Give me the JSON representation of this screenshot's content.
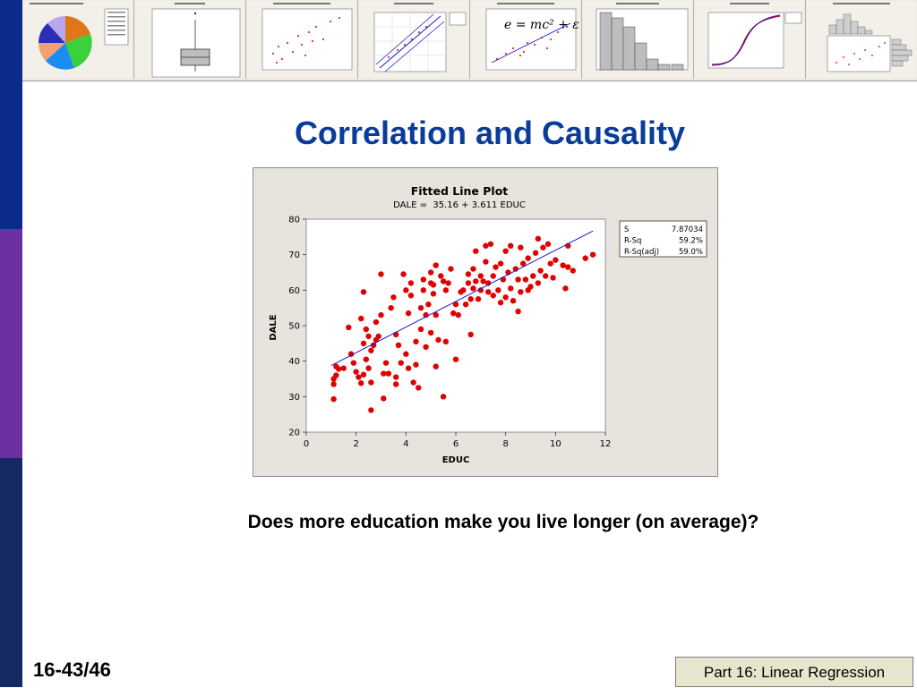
{
  "slide": {
    "title": "Correlation and Causality",
    "question": "Does more education make you live longer (on average)?",
    "slide_number": "16-43/46",
    "footer": "Part 16: Linear Regression"
  },
  "colors": {
    "sidebar": [
      "#0a2a8c",
      "#6c2fa0",
      "#152a62"
    ],
    "title": "#0a3c99",
    "points": "#e00000",
    "fit_line": "#1a1acf",
    "panel_bg": "#e7e3dd",
    "footer_bg": "#e6e6cf"
  },
  "thumbnails": [
    {
      "kind": "pie",
      "icon": "pie-chart-thumbnail"
    },
    {
      "kind": "box",
      "icon": "boxplot-thumbnail"
    },
    {
      "kind": "scatter",
      "icon": "scatterplot-thumbnail"
    },
    {
      "kind": "probability",
      "icon": "probability-plot-thumbnail"
    },
    {
      "kind": "formula",
      "icon": "scatter-formula-thumbnail"
    },
    {
      "kind": "histogram",
      "icon": "histogram-thumbnail"
    },
    {
      "kind": "cdf",
      "icon": "cdf-thumbnail"
    },
    {
      "kind": "marginal",
      "icon": "marginal-plot-thumbnail"
    }
  ],
  "chart_data": {
    "type": "scatter",
    "title": "Fitted Line Plot",
    "subtitle": "DALE =  35.16 + 3.611 EDUC",
    "xlabel": "EDUC",
    "ylabel": "DALE",
    "xlim": [
      0,
      12
    ],
    "ylim": [
      20,
      80
    ],
    "xticks": [
      0,
      2,
      4,
      6,
      8,
      10,
      12
    ],
    "yticks": [
      20,
      30,
      40,
      50,
      60,
      70,
      80
    ],
    "fit": {
      "intercept": 35.16,
      "slope": 3.611,
      "x_range": [
        1.0,
        11.5
      ]
    },
    "stats": [
      {
        "label": "S",
        "value": "7.87034"
      },
      {
        "label": "R-Sq",
        "value": "59.2%"
      },
      {
        "label": "R-Sq(adj)",
        "value": "59.0%"
      }
    ],
    "points": [
      [
        1.1,
        29.3
      ],
      [
        1.1,
        33.5
      ],
      [
        1.1,
        35.0
      ],
      [
        1.2,
        36.0
      ],
      [
        1.2,
        38.5
      ],
      [
        1.3,
        37.8
      ],
      [
        1.5,
        38.0
      ],
      [
        1.7,
        49.5
      ],
      [
        1.8,
        42.0
      ],
      [
        1.9,
        39.5
      ],
      [
        2.0,
        37.0
      ],
      [
        2.1,
        35.5
      ],
      [
        2.2,
        33.8
      ],
      [
        2.2,
        52.0
      ],
      [
        2.3,
        36.2
      ],
      [
        2.3,
        45.0
      ],
      [
        2.3,
        59.5
      ],
      [
        2.4,
        49.0
      ],
      [
        2.4,
        40.5
      ],
      [
        2.5,
        47.0
      ],
      [
        2.5,
        38.0
      ],
      [
        2.6,
        26.2
      ],
      [
        2.6,
        34.0
      ],
      [
        2.6,
        43.0
      ],
      [
        2.7,
        44.5
      ],
      [
        2.8,
        51.0
      ],
      [
        2.9,
        47.0
      ],
      [
        3.0,
        53.0
      ],
      [
        3.0,
        64.5
      ],
      [
        3.1,
        36.5
      ],
      [
        3.1,
        29.5
      ],
      [
        3.2,
        39.5
      ],
      [
        3.3,
        36.5
      ],
      [
        3.4,
        55.0
      ],
      [
        3.5,
        58.0
      ],
      [
        3.6,
        47.5
      ],
      [
        3.6,
        33.5
      ],
      [
        3.7,
        44.5
      ],
      [
        3.8,
        39.5
      ],
      [
        3.9,
        64.5
      ],
      [
        4.0,
        60.0
      ],
      [
        4.0,
        42.0
      ],
      [
        4.1,
        38.0
      ],
      [
        4.1,
        53.5
      ],
      [
        4.2,
        58.5
      ],
      [
        4.2,
        62.0
      ],
      [
        4.3,
        34.0
      ],
      [
        4.4,
        39.0
      ],
      [
        4.4,
        45.5
      ],
      [
        4.5,
        32.5
      ],
      [
        4.6,
        55.0
      ],
      [
        4.7,
        60.0
      ],
      [
        4.7,
        63.0
      ],
      [
        4.8,
        44.0
      ],
      [
        4.8,
        53.0
      ],
      [
        4.9,
        56.0
      ],
      [
        5.0,
        62.0
      ],
      [
        5.0,
        65.0
      ],
      [
        5.1,
        59.0
      ],
      [
        5.1,
        61.5
      ],
      [
        5.2,
        38.5
      ],
      [
        5.2,
        53.0
      ],
      [
        5.2,
        67.0
      ],
      [
        5.3,
        46.0
      ],
      [
        5.4,
        64.0
      ],
      [
        5.5,
        62.5
      ],
      [
        5.5,
        30.0
      ],
      [
        5.6,
        45.5
      ],
      [
        5.6,
        60.0
      ],
      [
        5.7,
        62.0
      ],
      [
        5.8,
        66.0
      ],
      [
        5.9,
        53.5
      ],
      [
        6.0,
        56.0
      ],
      [
        6.0,
        40.5
      ],
      [
        6.1,
        53.0
      ],
      [
        6.2,
        59.5
      ],
      [
        6.3,
        60.0
      ],
      [
        6.4,
        56.0
      ],
      [
        6.5,
        62.0
      ],
      [
        6.5,
        64.5
      ],
      [
        6.6,
        47.5
      ],
      [
        6.6,
        57.5
      ],
      [
        6.7,
        60.5
      ],
      [
        6.7,
        66.0
      ],
      [
        6.8,
        62.5
      ],
      [
        6.9,
        57.5
      ],
      [
        7.0,
        64.0
      ],
      [
        7.0,
        60.0
      ],
      [
        7.1,
        62.5
      ],
      [
        7.2,
        72.5
      ],
      [
        7.2,
        68.0
      ],
      [
        7.3,
        59.5
      ],
      [
        7.4,
        73.0
      ],
      [
        7.5,
        64.0
      ],
      [
        7.5,
        58.5
      ],
      [
        7.6,
        66.5
      ],
      [
        7.7,
        60.0
      ],
      [
        7.8,
        56.5
      ],
      [
        7.8,
        67.5
      ],
      [
        7.9,
        63.0
      ],
      [
        8.0,
        71.0
      ],
      [
        8.0,
        58.0
      ],
      [
        8.1,
        65.0
      ],
      [
        8.2,
        60.5
      ],
      [
        8.2,
        72.5
      ],
      [
        8.3,
        57.0
      ],
      [
        8.4,
        66.0
      ],
      [
        8.5,
        63.0
      ],
      [
        8.5,
        54.0
      ],
      [
        8.6,
        72.0
      ],
      [
        8.6,
        59.5
      ],
      [
        8.7,
        67.5
      ],
      [
        8.8,
        63.0
      ],
      [
        8.9,
        69.0
      ],
      [
        9.0,
        61.0
      ],
      [
        9.1,
        64.0
      ],
      [
        9.2,
        70.5
      ],
      [
        9.3,
        74.5
      ],
      [
        9.3,
        62.0
      ],
      [
        9.4,
        65.5
      ],
      [
        9.5,
        72.0
      ],
      [
        9.6,
        64.0
      ],
      [
        9.7,
        73.0
      ],
      [
        9.8,
        67.5
      ],
      [
        10.0,
        68.5
      ],
      [
        10.3,
        67.0
      ],
      [
        10.4,
        60.5
      ],
      [
        10.5,
        66.5
      ],
      [
        10.7,
        65.5
      ],
      [
        11.2,
        69.0
      ],
      [
        11.5,
        70.0
      ],
      [
        10.5,
        72.5
      ],
      [
        9.9,
        63.5
      ],
      [
        7.3,
        62.0
      ],
      [
        6.8,
        71.0
      ],
      [
        8.9,
        60.0
      ],
      [
        5.0,
        48.0
      ],
      [
        4.6,
        49.0
      ],
      [
        3.6,
        35.5
      ],
      [
        2.8,
        46.0
      ]
    ]
  }
}
